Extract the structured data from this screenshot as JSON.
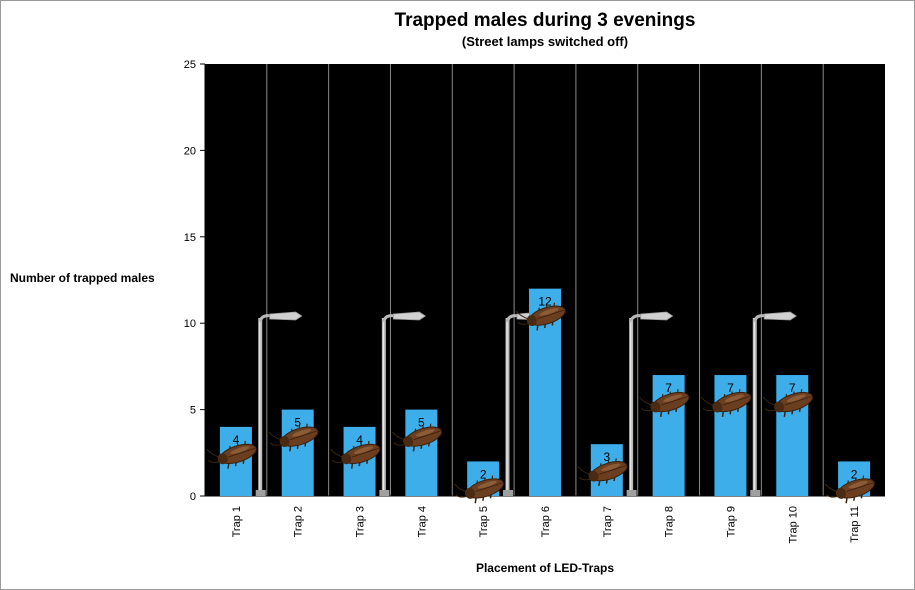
{
  "chart_data": {
    "type": "bar",
    "title": "Trapped males during 3 evenings",
    "subtitle": "(Street lamps switched off)",
    "ylabel": "Number of trapped males",
    "xlabel": "Placement of LED-Traps",
    "categories": [
      "Trap 1",
      "Trap 2",
      "Trap 3",
      "Trap 4",
      "Trap 5",
      "Trap 6",
      "Trap 7",
      "Trap 8",
      "Trap 9",
      "Trap 10",
      "Trap 11"
    ],
    "values": [
      4,
      5,
      4,
      5,
      2,
      12,
      3,
      7,
      7,
      7,
      2
    ],
    "data_labels": [
      "4",
      "5",
      "4",
      "5",
      "2",
      "12",
      "3",
      "7",
      "7",
      "7",
      "2"
    ],
    "ylim": [
      0,
      25
    ],
    "yticks": [
      0,
      5,
      10,
      15,
      20,
      25
    ],
    "ytick_labels": [
      "0",
      "5",
      "10",
      "15",
      "20",
      "25"
    ],
    "street_lamp_traps": [
      "Trap 2",
      "Trap 4",
      "Trap 6",
      "Trap 8",
      "Trap 10"
    ],
    "grid": false,
    "plot_background": "#000000",
    "bar_color": "#3daee9"
  }
}
